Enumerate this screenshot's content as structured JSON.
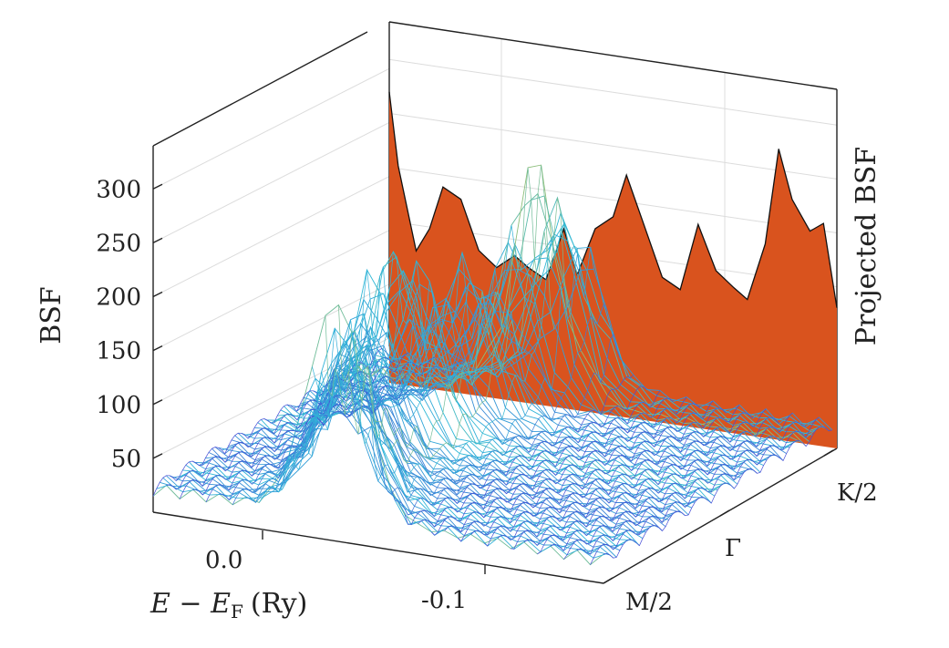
{
  "chart_data": {
    "type": "surface-3d",
    "zlabel": "BSF",
    "xlabel": "E − E",
    "xlabel_sub": "F",
    "xlabel_unit": "(Ry)",
    "projection_label": "Projected BSF",
    "z_ticks": [
      "50",
      "100",
      "150",
      "200",
      "250",
      "300"
    ],
    "z_tick_values": [
      50,
      100,
      150,
      200,
      250,
      300
    ],
    "zlim": [
      0,
      340
    ],
    "x_ticks": [
      "0.0",
      "-0.1"
    ],
    "y_ticks": [
      "M/2",
      "Γ",
      "K/2"
    ],
    "grid": true,
    "colors": {
      "projection_fill": "#d9531e",
      "projection_outline": "#111111",
      "surface_low": "#4b3bd6",
      "surface_mid": "#2fb8d8",
      "surface_high": "#f0c419"
    },
    "projected_peaks": [
      {
        "k": 0.0,
        "v": 300
      },
      {
        "k": 0.02,
        "v": 225
      },
      {
        "k": 0.06,
        "v": 140
      },
      {
        "k": 0.09,
        "v": 165
      },
      {
        "k": 0.12,
        "v": 210
      },
      {
        "k": 0.16,
        "v": 200
      },
      {
        "k": 0.2,
        "v": 150
      },
      {
        "k": 0.24,
        "v": 135
      },
      {
        "k": 0.28,
        "v": 150
      },
      {
        "k": 0.31,
        "v": 140
      },
      {
        "k": 0.35,
        "v": 130
      },
      {
        "k": 0.39,
        "v": 185
      },
      {
        "k": 0.42,
        "v": 140
      },
      {
        "k": 0.46,
        "v": 190
      },
      {
        "k": 0.5,
        "v": 205
      },
      {
        "k": 0.53,
        "v": 250
      },
      {
        "k": 0.57,
        "v": 200
      },
      {
        "k": 0.61,
        "v": 150
      },
      {
        "k": 0.65,
        "v": 140
      },
      {
        "k": 0.69,
        "v": 210
      },
      {
        "k": 0.73,
        "v": 165
      },
      {
        "k": 0.77,
        "v": 150
      },
      {
        "k": 0.8,
        "v": 140
      },
      {
        "k": 0.84,
        "v": 200
      },
      {
        "k": 0.87,
        "v": 300
      },
      {
        "k": 0.9,
        "v": 250
      },
      {
        "k": 0.94,
        "v": 220
      },
      {
        "k": 0.97,
        "v": 230
      },
      {
        "k": 1.0,
        "v": 145
      }
    ]
  }
}
